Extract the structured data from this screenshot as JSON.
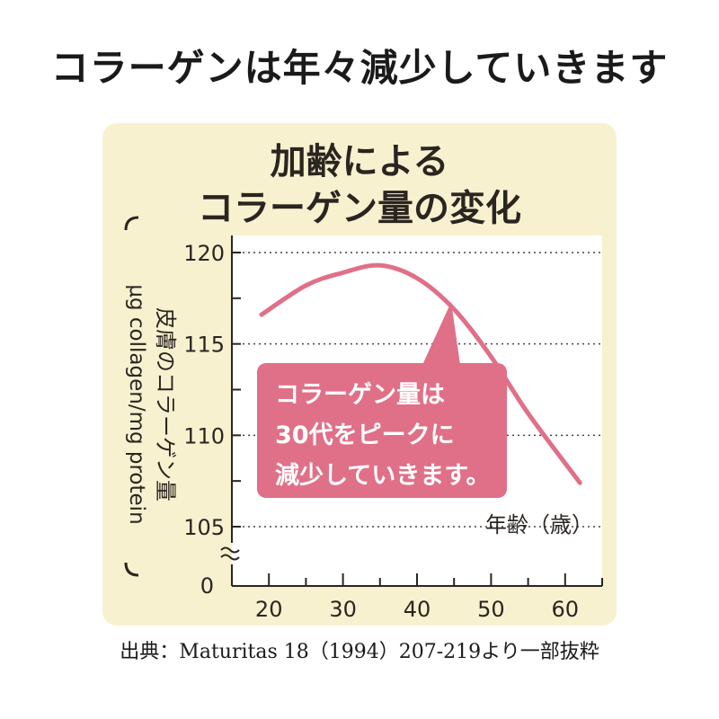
{
  "headline": "コラーゲンは年々減少していきます",
  "source": "出典：Maturitas 18（1994）207-219より一部抜粋",
  "colors": {
    "panel": "#f8f1cf",
    "line": "#e07088",
    "callout": "#e07088",
    "text": "#2b2521"
  },
  "chart_data": {
    "type": "line",
    "title": [
      "加齢による",
      "コラーゲン量の変化"
    ],
    "ylabel_ja": "皮膚のコラーゲン量",
    "ylabel_unit": "μg collagen/mg protein",
    "xlabel": "年齢（歳）",
    "xlim": [
      15,
      65
    ],
    "ylim": [
      105,
      120
    ],
    "y_axis_break": true,
    "y_zero_label": "0",
    "xticks": [
      20,
      30,
      40,
      50,
      60
    ],
    "yticks": [
      105,
      110,
      115,
      120
    ],
    "ygrid": "dotted",
    "callout": [
      "コラーゲン量は",
      "30代をピークに",
      "減少していきます。"
    ],
    "series": [
      {
        "x": [
          19,
          25,
          30,
          35,
          40,
          45,
          50,
          55,
          62
        ],
        "y": [
          116.6,
          118.2,
          118.9,
          119.3,
          118.6,
          116.9,
          114.3,
          111.2,
          107.4
        ]
      }
    ]
  }
}
